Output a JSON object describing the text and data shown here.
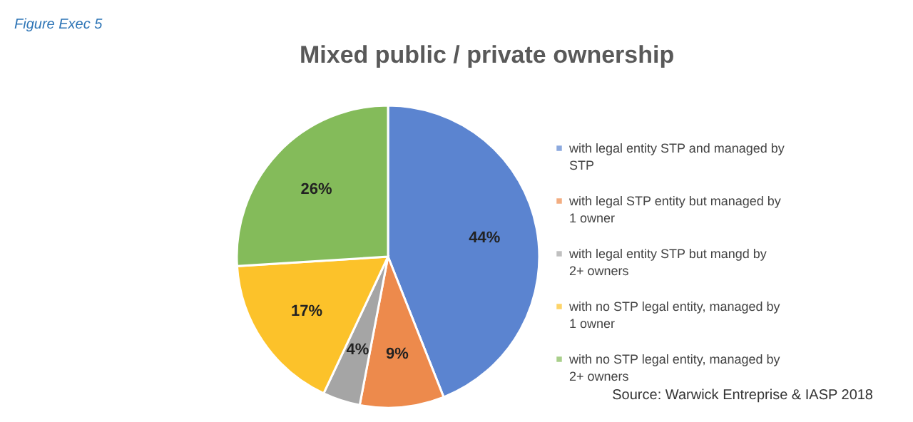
{
  "chart_data": {
    "type": "pie",
    "title": "Mixed public / private ownership",
    "categories": [
      "with legal entity STP and managed by STP",
      "with legal STP entity but managed by 1 owner",
      "with legal entity STP but mangd by 2+ owners",
      "with no STP legal entity, managed by 1 owner",
      "with no STP legal entity, managed by 2+ owners"
    ],
    "values": [
      44,
      9,
      4,
      17,
      26
    ],
    "colors": [
      "#5b84d0",
      "#ed8a4c",
      "#a5a5a5",
      "#fcc22a",
      "#84bb5a"
    ],
    "value_labels": [
      "44%",
      "9%",
      "4%",
      "17%",
      "26%"
    ],
    "legend": "right",
    "annotations": [
      "Figure Exec 5",
      "Source: Warwick Entreprise & IASP 2018"
    ]
  }
}
